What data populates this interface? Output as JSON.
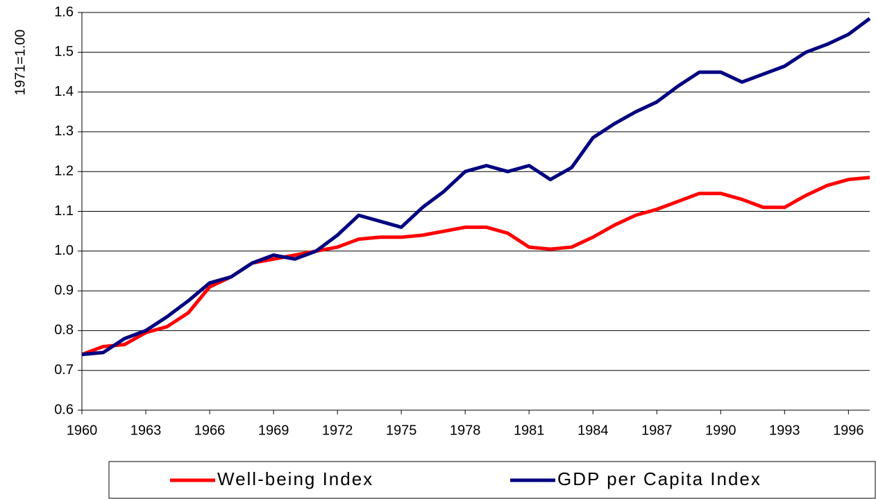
{
  "chart_data": {
    "type": "line",
    "y_label": "1971=1.00",
    "x": [
      1960,
      1961,
      1962,
      1963,
      1964,
      1965,
      1966,
      1967,
      1968,
      1969,
      1970,
      1971,
      1972,
      1973,
      1974,
      1975,
      1976,
      1977,
      1978,
      1979,
      1980,
      1981,
      1982,
      1983,
      1984,
      1985,
      1986,
      1987,
      1988,
      1989,
      1990,
      1991,
      1992,
      1993,
      1994,
      1995,
      1996,
      1997
    ],
    "series": [
      {
        "name": "Well-being Index",
        "color": "#ff0000",
        "values": [
          0.74,
          0.76,
          0.765,
          0.795,
          0.81,
          0.845,
          0.91,
          0.935,
          0.97,
          0.98,
          0.99,
          1.0,
          1.01,
          1.03,
          1.035,
          1.035,
          1.04,
          1.05,
          1.06,
          1.06,
          1.045,
          1.01,
          1.005,
          1.01,
          1.035,
          1.065,
          1.09,
          1.105,
          1.125,
          1.145,
          1.145,
          1.13,
          1.11,
          1.11,
          1.14,
          1.165,
          1.18,
          1.185
        ]
      },
      {
        "name": "GDP per Capita Index",
        "color": "#000080",
        "values": [
          0.74,
          0.745,
          0.78,
          0.8,
          0.835,
          0.875,
          0.92,
          0.935,
          0.97,
          0.99,
          0.98,
          1.0,
          1.04,
          1.09,
          1.075,
          1.06,
          1.11,
          1.15,
          1.2,
          1.215,
          1.2,
          1.215,
          1.18,
          1.21,
          1.285,
          1.32,
          1.35,
          1.375,
          1.415,
          1.45,
          1.45,
          1.425,
          1.445,
          1.465,
          1.5,
          1.52,
          1.545,
          1.585
        ]
      }
    ],
    "xlim": [
      1960,
      1997
    ],
    "xticks": [
      1960,
      1963,
      1966,
      1969,
      1972,
      1975,
      1978,
      1981,
      1984,
      1987,
      1990,
      1993,
      1996
    ],
    "ylim": [
      0.6,
      1.6
    ],
    "yticks": [
      0.6,
      0.7,
      0.8,
      0.9,
      {
        "value": 1.0,
        "label": "1.0"
      },
      1.1,
      1.2,
      1.3,
      1.4,
      1.5,
      1.6
    ],
    "grid": true
  }
}
